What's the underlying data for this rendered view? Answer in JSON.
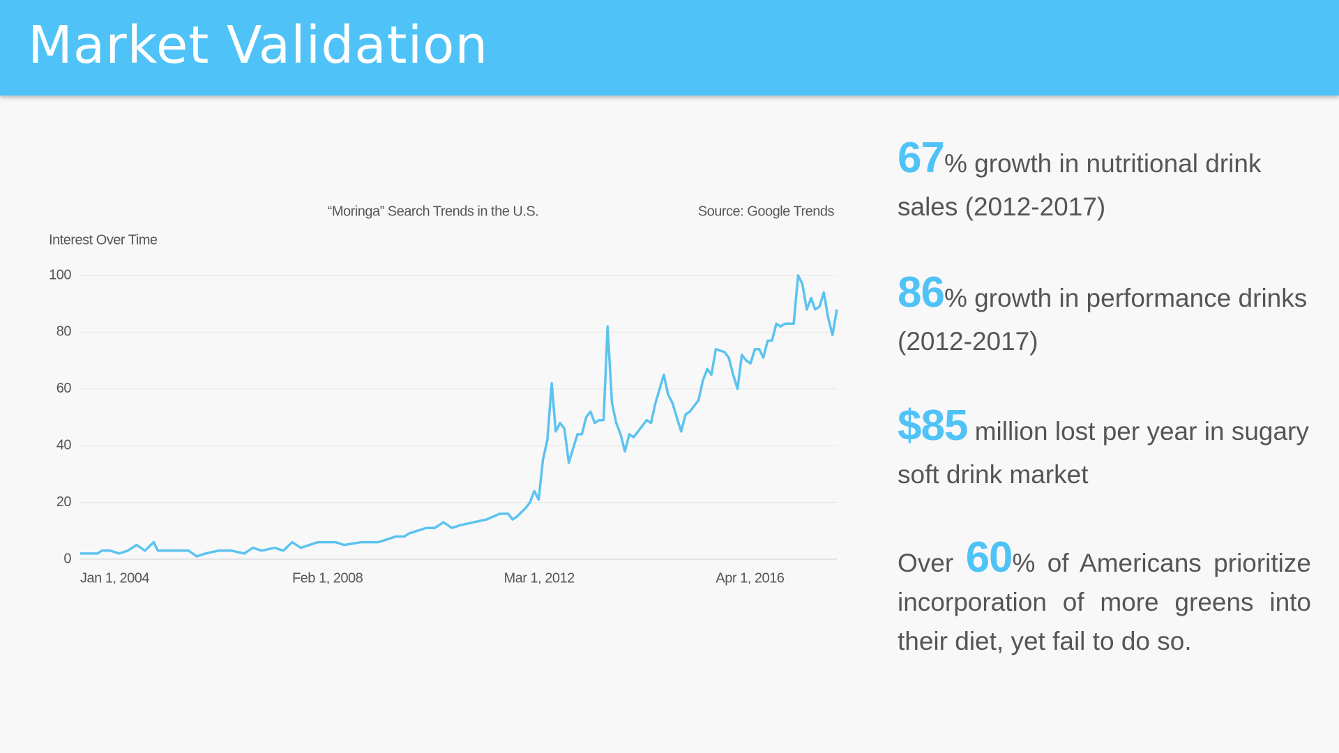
{
  "header": {
    "title": "Market Validation"
  },
  "chart_data": {
    "type": "line",
    "title": "“Moringa” Search Trends in the U.S.",
    "source": "Source: Google Trends",
    "y_label": "Interest Over Time",
    "color": "#5cc3f0",
    "grid": true,
    "x": [
      "2004-01-01",
      "2004-05-01",
      "2004-06-01",
      "2004-08-01",
      "2004-10-01",
      "2004-12-01",
      "2005-02-01",
      "2005-04-01",
      "2005-06-01",
      "2005-07-01",
      "2006-02-01",
      "2006-04-01",
      "2006-06-01",
      "2006-09-01",
      "2006-12-01",
      "2007-03-01",
      "2007-05-01",
      "2007-07-01",
      "2007-10-01",
      "2007-12-01",
      "2008-02-01",
      "2008-04-01",
      "2008-08-01",
      "2008-12-01",
      "2009-02-01",
      "2009-06-01",
      "2009-10-01",
      "2010-02-01",
      "2010-04-01",
      "2010-05-01",
      "2010-07-01",
      "2010-09-01",
      "2010-11-01",
      "2011-01-01",
      "2011-03-01",
      "2011-05-01",
      "2011-08-01",
      "2011-11-01",
      "2012-02-01",
      "2012-04-01",
      "2012-05-01",
      "2012-06-01",
      "2012-08-01",
      "2012-09-01",
      "2012-10-01",
      "2012-11-01",
      "2012-12-01",
      "2013-01-01",
      "2013-02-01",
      "2013-03-01",
      "2013-04-01",
      "2013-05-01",
      "2013-06-01",
      "2013-08-01",
      "2013-09-01",
      "2013-10-01",
      "2013-11-01",
      "2013-12-01",
      "2014-01-01",
      "2014-02-01",
      "2014-03-01",
      "2014-04-01",
      "2014-05-01",
      "2014-06-01",
      "2014-07-01",
      "2014-08-01",
      "2014-09-01",
      "2014-11-01",
      "2014-12-01",
      "2015-01-01",
      "2015-02-01",
      "2015-04-01",
      "2015-05-01",
      "2015-06-01",
      "2015-07-01",
      "2015-08-01",
      "2015-09-01",
      "2015-10-01",
      "2015-12-01",
      "2016-01-01",
      "2016-02-01",
      "2016-03-01",
      "2016-04-01",
      "2016-06-01",
      "2016-07-01",
      "2016-08-01",
      "2016-09-01",
      "2016-10-01",
      "2016-11-01",
      "2016-12-01",
      "2017-01-01",
      "2017-02-01",
      "2017-03-01",
      "2017-04-01",
      "2017-05-01",
      "2017-06-01",
      "2017-07-01",
      "2017-08-01",
      "2017-10-01",
      "2017-11-01",
      "2017-12-01",
      "2018-01-01",
      "2018-02-01",
      "2018-03-01",
      "2018-04-01",
      "2018-05-01",
      "2018-06-01",
      "2018-07-01",
      "2018-08-01"
    ],
    "values": [
      2,
      2,
      3,
      3,
      2,
      3,
      5,
      3,
      6,
      3,
      3,
      1,
      2,
      3,
      3,
      2,
      4,
      3,
      4,
      3,
      6,
      4,
      6,
      6,
      5,
      6,
      6,
      8,
      8,
      9,
      10,
      11,
      11,
      13,
      11,
      12,
      13,
      14,
      16,
      16,
      14,
      15,
      18,
      20,
      24,
      21,
      35,
      42,
      62,
      45,
      48,
      46,
      34,
      44,
      44,
      50,
      52,
      48,
      49,
      49,
      82,
      55,
      48,
      44,
      38,
      44,
      43,
      47,
      49,
      48,
      55,
      65,
      58,
      55,
      50,
      45,
      51,
      52,
      56,
      63,
      67,
      65,
      74,
      73,
      71,
      65,
      60,
      72,
      70,
      69,
      74,
      74,
      71,
      77,
      77,
      83,
      82,
      83,
      83,
      100,
      97,
      88,
      92,
      88,
      89,
      94,
      85,
      79,
      88
    ],
    "xlim": [
      "2004-01-01",
      "2018-08-01"
    ],
    "xticks": [
      {
        "value": "2004-01-01",
        "label": "Jan 1, 2004"
      },
      {
        "value": "2008-02-01",
        "label": "Feb 1, 2008"
      },
      {
        "value": "2012-03-01",
        "label": "Mar 1, 2012"
      },
      {
        "value": "2016-04-01",
        "label": "Apr 1, 2016"
      }
    ],
    "ylim": [
      0,
      100
    ],
    "yticks": [
      0,
      20,
      40,
      60,
      80,
      100
    ]
  },
  "stats": [
    {
      "figure": "67",
      "text": "% growth in nutritional drink sales (2012-2017)"
    },
    {
      "figure": "86",
      "text": "% growth in performance drinks (2012-2017)"
    },
    {
      "figure": "$85",
      "text": " million lost per year in sugary soft drink market"
    },
    {
      "lead": "Over ",
      "figure": "60",
      "text": "% of Americans prioritize incorporation of more greens into their diet, yet fail to do so."
    }
  ]
}
